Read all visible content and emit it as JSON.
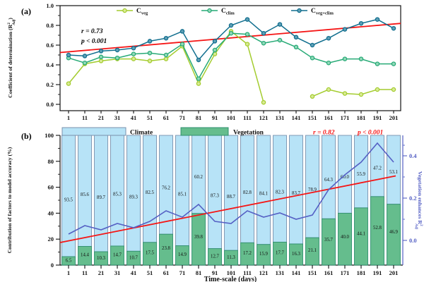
{
  "figure": {
    "panel_a_label": "(a)",
    "panel_b_label": "(b)",
    "background": "#ffffff"
  },
  "chart_data": [
    {
      "type": "line",
      "panel": "a",
      "x": [
        1,
        11,
        21,
        31,
        41,
        51,
        61,
        71,
        81,
        91,
        101,
        111,
        121,
        131,
        141,
        151,
        161,
        171,
        181,
        191,
        201
      ],
      "ylabel_parts": {
        "pre": "Coefficient of determination (R",
        "sup": "2",
        "sub": "Adj",
        "post": ")"
      },
      "yticks": [
        0.0,
        0.2,
        0.4,
        0.6,
        0.8,
        1.0
      ],
      "ylim": [
        -0.06,
        1.0
      ],
      "grid": false,
      "legend_position": "top-inside",
      "series": [
        {
          "name": "Cveg",
          "label_main": "C",
          "label_sub": "veg",
          "color": "#a4cc2f",
          "marker_fill": "#d9eb96",
          "values": [
            0.21,
            0.41,
            0.44,
            0.46,
            0.46,
            0.44,
            0.46,
            0.59,
            0.21,
            0.51,
            0.74,
            0.61,
            0.02,
            null,
            null,
            0.08,
            0.15,
            0.11,
            0.1,
            0.15,
            0.15
          ]
        },
        {
          "name": "Cclim",
          "label_main": "C",
          "label_sub": "clim",
          "color": "#27aa76",
          "marker_fill": "#92d8b9",
          "values": [
            0.47,
            0.42,
            0.48,
            0.47,
            0.51,
            0.52,
            0.5,
            0.61,
            0.26,
            0.55,
            0.72,
            0.71,
            0.62,
            0.65,
            0.58,
            0.47,
            0.42,
            0.46,
            0.46,
            0.41,
            0.41
          ]
        },
        {
          "name": "Cveg+clim",
          "label_main": "C",
          "label_sub": "veg+clim",
          "color": "#106e8e",
          "marker_fill": "#5f9fb6",
          "values": [
            0.5,
            0.49,
            0.54,
            0.55,
            0.57,
            0.64,
            0.67,
            0.74,
            0.45,
            0.64,
            0.8,
            0.86,
            0.72,
            0.81,
            0.68,
            0.6,
            0.67,
            0.76,
            0.82,
            0.86,
            0.77
          ]
        }
      ],
      "trend": {
        "color": "#f51515",
        "start": 0.525,
        "end": 0.82
      },
      "annotation": {
        "r": "r = 0.73",
        "p": "p < 0.001",
        "color": "#000000"
      }
    },
    {
      "type": "stacked-bar-line",
      "panel": "b",
      "categories": [
        1,
        11,
        21,
        31,
        41,
        51,
        61,
        71,
        81,
        91,
        101,
        111,
        121,
        131,
        141,
        151,
        161,
        171,
        181,
        191,
        201
      ],
      "xlabel": "Time-scale (days)",
      "left_axis": {
        "label": "Contribution of factors to model accuracy (%)",
        "ticks": [
          0,
          20,
          40,
          60,
          80,
          100
        ],
        "lim": [
          0,
          100
        ]
      },
      "right_axis": {
        "label_parts": {
          "pre": "Vegetation enhances R",
          "sup": "2",
          "sub": "Adj"
        },
        "ticks": [
          0.0,
          0.2,
          0.4
        ],
        "color": "#5560c4"
      },
      "bars": [
        {
          "name": "Climate",
          "fill": "#b7e3f7",
          "border": "#7991ad",
          "values": [
            93.5,
            85.6,
            89.7,
            85.3,
            89.3,
            82.5,
            76.2,
            85.1,
            60.2,
            87.3,
            88.7,
            82.8,
            84.1,
            82.3,
            83.7,
            78.9,
            64.3,
            60.0,
            55.9,
            47.2,
            53.1
          ]
        },
        {
          "name": "Vegetation",
          "fill": "#65bd8d",
          "border": "#2f9070",
          "values": [
            6.5,
            14.4,
            10.3,
            14.7,
            10.7,
            17.5,
            23.8,
            14.9,
            39.8,
            12.7,
            11.3,
            17.2,
            15.9,
            17.7,
            16.3,
            21.1,
            35.7,
            40.0,
            44.1,
            52.8,
            46.9
          ]
        }
      ],
      "line": {
        "name": "Vegetation enhances R2Adj",
        "color": "#5560c4",
        "values": [
          0.03,
          0.07,
          0.05,
          0.08,
          0.06,
          0.09,
          0.14,
          0.11,
          0.17,
          0.09,
          0.08,
          0.14,
          0.11,
          0.13,
          0.1,
          0.12,
          0.24,
          0.31,
          0.37,
          0.46,
          0.37
        ]
      },
      "trend": {
        "color": "#f51515",
        "start": -0.01,
        "end": 0.305
      },
      "annotation": {
        "r": "r = 0.82",
        "p": "p < 0.001",
        "color": "#f51515"
      }
    }
  ]
}
